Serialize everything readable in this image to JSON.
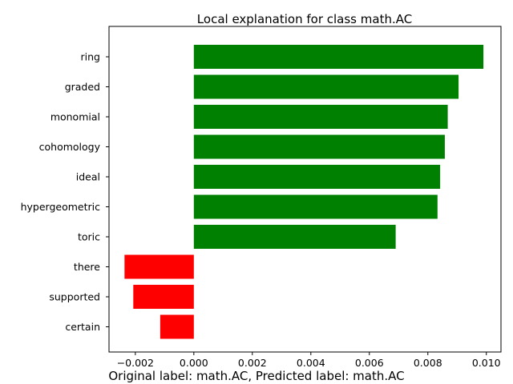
{
  "chart_data": {
    "type": "bar",
    "orientation": "horizontal",
    "title": "Local explanation for class math.AC",
    "xlabel": "",
    "ylabel": "",
    "xlim": [
      -0.0029,
      0.0105
    ],
    "grid": false,
    "legend": "none",
    "categories": [
      "ring",
      "graded",
      "monomial",
      "cohomology",
      "ideal",
      "hypergeometric",
      "toric",
      "there",
      "supported",
      "certain"
    ],
    "values": [
      0.0099,
      0.00905,
      0.00868,
      0.00858,
      0.00842,
      0.00833,
      0.0069,
      -0.00237,
      -0.00207,
      -0.00115
    ],
    "positive_color": "#008000",
    "negative_color": "#ff0000",
    "x_ticks": [
      -0.002,
      0.0,
      0.002,
      0.004,
      0.006,
      0.008,
      0.01
    ],
    "x_tick_labels": [
      "−0.002",
      "0.000",
      "0.002",
      "0.004",
      "0.006",
      "0.008",
      "0.010"
    ]
  },
  "caption": "Original label: math.AC, Predicted label: math.AC"
}
